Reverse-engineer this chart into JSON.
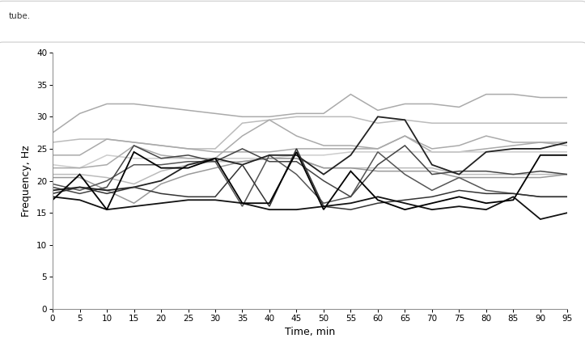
{
  "time_points": [
    0,
    5,
    10,
    15,
    20,
    25,
    30,
    35,
    40,
    45,
    50,
    55,
    60,
    65,
    70,
    75,
    80,
    85,
    90,
    95
  ],
  "series": [
    {
      "values": [
        27.5,
        30.5,
        32.0,
        32.0,
        31.5,
        31.0,
        30.5,
        30.0,
        30.0,
        30.5,
        30.5,
        33.5,
        31.0,
        32.0,
        32.0,
        31.5,
        33.5,
        33.5,
        33.0,
        33.0
      ],
      "color": "#aaaaaa",
      "linewidth": 1.1
    },
    {
      "values": [
        26.0,
        26.5,
        26.5,
        26.0,
        25.5,
        25.0,
        25.0,
        29.0,
        29.5,
        30.0,
        30.0,
        30.0,
        29.0,
        29.5,
        29.0,
        29.0,
        29.0,
        29.0,
        29.0,
        29.0
      ],
      "color": "#bbbbbb",
      "linewidth": 1.1
    },
    {
      "values": [
        24.0,
        24.0,
        26.5,
        26.0,
        25.5,
        25.0,
        24.5,
        24.5,
        24.5,
        25.0,
        25.0,
        25.0,
        25.0,
        27.0,
        24.5,
        24.5,
        25.0,
        25.5,
        26.0,
        26.0
      ],
      "color": "#aaaaaa",
      "linewidth": 1.1
    },
    {
      "values": [
        22.5,
        22.0,
        24.0,
        23.5,
        23.5,
        23.5,
        23.5,
        23.5,
        23.5,
        24.0,
        24.0,
        24.5,
        24.5,
        24.5,
        24.5,
        24.5,
        24.5,
        24.5,
        24.5,
        24.5
      ],
      "color": "#cccccc",
      "linewidth": 1.1
    },
    {
      "values": [
        22.0,
        22.0,
        22.5,
        25.5,
        24.0,
        23.5,
        23.5,
        27.0,
        29.5,
        27.0,
        25.5,
        25.5,
        25.0,
        27.0,
        25.0,
        25.5,
        27.0,
        26.0,
        26.0,
        25.5
      ],
      "color": "#aaaaaa",
      "linewidth": 1.1
    },
    {
      "values": [
        21.0,
        21.0,
        20.5,
        19.5,
        21.5,
        22.5,
        23.0,
        23.0,
        23.5,
        23.5,
        22.0,
        22.0,
        22.0,
        22.0,
        22.0,
        21.0,
        21.0,
        21.0,
        21.0,
        21.0
      ],
      "color": "#bbbbbb",
      "linewidth": 1.1
    },
    {
      "values": [
        20.5,
        20.5,
        18.5,
        16.5,
        19.5,
        21.0,
        22.0,
        23.0,
        23.5,
        23.5,
        22.0,
        22.0,
        21.5,
        21.5,
        21.5,
        20.5,
        20.5,
        20.5,
        20.5,
        21.0
      ],
      "color": "#999999",
      "linewidth": 1.1
    },
    {
      "values": [
        19.5,
        18.5,
        20.0,
        22.5,
        22.5,
        23.0,
        23.0,
        16.0,
        24.0,
        21.0,
        16.5,
        17.5,
        24.5,
        21.0,
        18.5,
        20.5,
        18.5,
        18.0,
        17.5,
        17.5
      ],
      "color": "#555555",
      "linewidth": 1.1
    },
    {
      "values": [
        19.0,
        18.0,
        19.0,
        25.5,
        23.5,
        24.0,
        23.0,
        25.0,
        23.0,
        23.0,
        20.0,
        17.5,
        22.5,
        25.5,
        21.0,
        21.5,
        21.5,
        21.0,
        21.5,
        21.0
      ],
      "color": "#444444",
      "linewidth": 1.1
    },
    {
      "values": [
        18.5,
        19.0,
        18.5,
        19.0,
        20.0,
        22.5,
        23.5,
        22.5,
        24.0,
        24.0,
        21.0,
        24.0,
        30.0,
        29.5,
        22.5,
        21.0,
        24.5,
        25.0,
        25.0,
        26.0
      ],
      "color": "#222222",
      "linewidth": 1.3
    },
    {
      "values": [
        18.0,
        19.0,
        18.0,
        19.0,
        18.0,
        17.5,
        17.5,
        22.5,
        16.0,
        25.0,
        16.0,
        15.5,
        16.5,
        17.0,
        17.5,
        18.5,
        18.0,
        18.0,
        17.5,
        17.5
      ],
      "color": "#333333",
      "linewidth": 1.1
    },
    {
      "values": [
        17.5,
        17.0,
        15.5,
        16.0,
        16.5,
        17.0,
        17.0,
        16.5,
        15.5,
        15.5,
        16.0,
        16.5,
        17.5,
        16.5,
        15.5,
        16.0,
        15.5,
        17.5,
        14.0,
        15.0
      ],
      "color": "#111111",
      "linewidth": 1.3
    },
    {
      "values": [
        17.0,
        21.0,
        15.5,
        24.5,
        22.0,
        22.0,
        23.5,
        16.5,
        16.5,
        24.5,
        15.5,
        21.5,
        17.0,
        15.5,
        16.5,
        17.5,
        16.5,
        17.0,
        24.0,
        24.0
      ],
      "color": "#000000",
      "linewidth": 1.3
    }
  ],
  "xlabel": "Time, min",
  "ylabel": "Frequency, Hz",
  "xlim": [
    0,
    95
  ],
  "ylim": [
    0,
    40
  ],
  "yticks": [
    0,
    5,
    10,
    15,
    20,
    25,
    30,
    35,
    40
  ],
  "xticks": [
    0,
    5,
    10,
    15,
    20,
    25,
    30,
    35,
    40,
    45,
    50,
    55,
    60,
    65,
    70,
    75,
    80,
    85,
    90,
    95
  ],
  "background_color": "#ffffff",
  "panel_border_color": "#cccccc",
  "title_text": "tube.",
  "axis_linecolor": "#888888",
  "tick_fontsize": 7.5,
  "label_fontsize": 9
}
